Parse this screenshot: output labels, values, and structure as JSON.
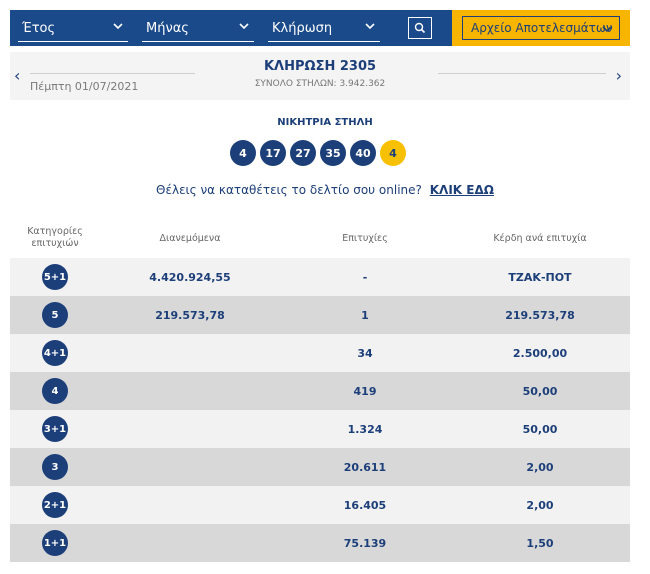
{
  "filters": {
    "year_label": "Έτος",
    "month_label": "Μήνας",
    "draw_label": "Κλήρωση",
    "archive_label": "Αρχείο Αποτελεσμάτων"
  },
  "draw": {
    "date": "Πέμπτη 01/07/2021",
    "title": "ΚΛΗΡΩΣΗ 2305",
    "columns_total": "ΣΥΝΟΛΟ ΣΤΗΛΩΝ: 3.942.362"
  },
  "winning": {
    "label": "ΝΙΚΗΤΡΙΑ ΣΤΗΛΗ",
    "numbers": [
      "4",
      "17",
      "27",
      "35",
      "40"
    ],
    "joker": "4"
  },
  "cta": {
    "text": "Θέλεις να καταθέτεις το δελτίο σου online?",
    "link": "ΚΛΙΚ ΕΔΩ"
  },
  "table": {
    "headers": [
      "Κατηγορίες επιτυχιών",
      "Διανεμόμενα",
      "Επιτυχίες",
      "Κέρδη ανά επιτυχία"
    ],
    "rows": [
      {
        "cat": "5+1",
        "distributed": "4.420.924,55",
        "winners": "-",
        "prize": "ΤΖΑΚ-ΠΟΤ"
      },
      {
        "cat": "5",
        "distributed": "219.573,78",
        "winners": "1",
        "prize": "219.573,78"
      },
      {
        "cat": "4+1",
        "distributed": "",
        "winners": "34",
        "prize": "2.500,00"
      },
      {
        "cat": "4",
        "distributed": "",
        "winners": "419",
        "prize": "50,00"
      },
      {
        "cat": "3+1",
        "distributed": "",
        "winners": "1.324",
        "prize": "50,00"
      },
      {
        "cat": "3",
        "distributed": "",
        "winners": "20.611",
        "prize": "2,00"
      },
      {
        "cat": "2+1",
        "distributed": "",
        "winners": "16.405",
        "prize": "2,00"
      },
      {
        "cat": "1+1",
        "distributed": "",
        "winners": "75.139",
        "prize": "1,50"
      }
    ]
  },
  "colors": {
    "primary": "#1a4a8a",
    "accent": "#f7b500",
    "text": "#1d3f79"
  },
  "icons": {
    "search": "search-icon",
    "chevron": "chevron-down-icon",
    "prev": "chevron-left-icon",
    "next": "chevron-right-icon"
  }
}
